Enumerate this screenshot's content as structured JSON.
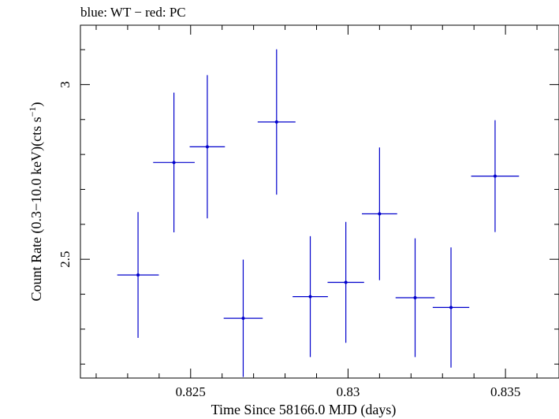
{
  "chart_data": {
    "type": "scatter",
    "title": "blue: WT − red: PC",
    "xlabel": "Time Since 58166.0 MJD (days)",
    "ylabel_main": "Count Rate (0.3−10.0 keV)(cts s",
    "ylabel_sup": "−1",
    "ylabel_end": ")",
    "xlim": [
      0.8215,
      0.8367
    ],
    "ylim": [
      2.16,
      3.17
    ],
    "x_ticks": [
      {
        "value": 0.825,
        "label": "0.825"
      },
      {
        "value": 0.83,
        "label": "0.83"
      },
      {
        "value": 0.835,
        "label": "0.835"
      }
    ],
    "y_ticks": [
      {
        "value": 2.5,
        "label": "2.5"
      },
      {
        "value": 3.0,
        "label": "3"
      }
    ],
    "grid": false,
    "series": [
      {
        "color": "#0000cc",
        "points": [
          {
            "x": 0.82333,
            "xerr": 0.00066,
            "y": 2.455,
            "yerr": 0.18
          },
          {
            "x": 0.82447,
            "xerr": 0.00066,
            "y": 2.777,
            "yerr": 0.2
          },
          {
            "x": 0.82553,
            "xerr": 0.00056,
            "y": 2.822,
            "yerr": 0.205
          },
          {
            "x": 0.82667,
            "xerr": 0.00062,
            "y": 2.331,
            "yerr": 0.168
          },
          {
            "x": 0.82773,
            "xerr": 0.0006,
            "y": 2.893,
            "yerr": 0.208
          },
          {
            "x": 0.8288,
            "xerr": 0.00056,
            "y": 2.393,
            "yerr": 0.173
          },
          {
            "x": 0.82993,
            "xerr": 0.00058,
            "y": 2.434,
            "yerr": 0.173
          },
          {
            "x": 0.831,
            "xerr": 0.00056,
            "y": 2.63,
            "yerr": 0.19
          },
          {
            "x": 0.83213,
            "xerr": 0.00062,
            "y": 2.39,
            "yerr": 0.17
          },
          {
            "x": 0.83327,
            "xerr": 0.00058,
            "y": 2.362,
            "yerr": 0.172
          },
          {
            "x": 0.83467,
            "xerr": 0.00076,
            "y": 2.738,
            "yerr": 0.16
          }
        ]
      }
    ]
  }
}
